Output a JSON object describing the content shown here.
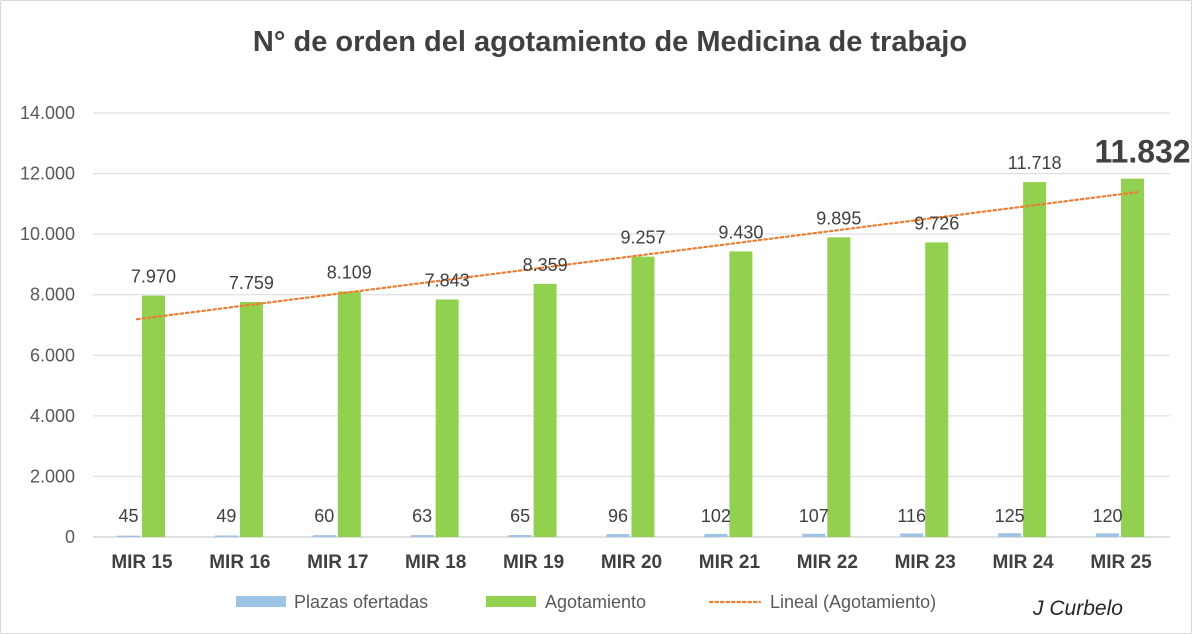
{
  "chart_data": {
    "type": "bar",
    "title": "N° de orden del agotamiento de Medicina de trabajo",
    "categories": [
      "MIR 15",
      "MIR 16",
      "MIR 17",
      "MIR 18",
      "MIR 19",
      "MIR 20",
      "MIR 21",
      "MIR 22",
      "MIR 23",
      "MIR 24",
      "MIR 25"
    ],
    "series": [
      {
        "name": "Plazas ofertadas",
        "color": "#9dc3e6",
        "values": [
          45,
          49,
          60,
          63,
          65,
          96,
          102,
          107,
          116,
          125,
          120
        ],
        "labels": [
          "45",
          "49",
          "60",
          "63",
          "65",
          "96",
          "102",
          "107",
          "116",
          "125",
          "120"
        ]
      },
      {
        "name": "Agotamiento",
        "color": "#92d050",
        "values": [
          7970,
          7759,
          8109,
          7843,
          8359,
          9257,
          9430,
          9895,
          9726,
          11718,
          11832
        ],
        "labels": [
          "7.970",
          "7.759",
          "8.109",
          "7.843",
          "8.359",
          "9.257",
          "9.430",
          "9.895",
          "9.726",
          "11.718",
          "11.832"
        ]
      }
    ],
    "trendline": {
      "name": "Lineal (Agotamiento)",
      "type": "linear",
      "of_series": "Agotamiento",
      "color": "#ed7d31"
    },
    "ylim": [
      0,
      14000
    ],
    "yticks": [
      0,
      2000,
      4000,
      6000,
      8000,
      10000,
      12000,
      14000
    ],
    "ytick_labels": [
      "0",
      "2.000",
      "4.000",
      "6.000",
      "8.000",
      "10.000",
      "12.000",
      "14.000"
    ],
    "xlabel": "",
    "ylabel": "",
    "grid": true,
    "legend_position": "bottom",
    "highlighted_label": "11.832"
  },
  "colors": {
    "grid": "#d9d9d9",
    "axis": "#bfbfbf"
  },
  "signature": "J Curbelo"
}
